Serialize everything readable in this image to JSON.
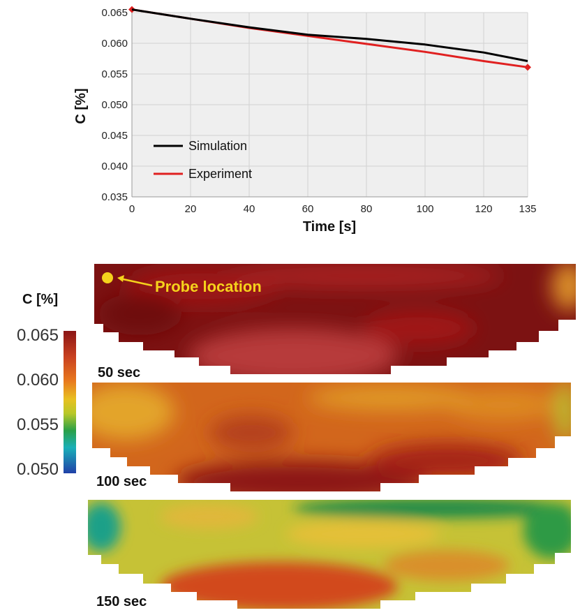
{
  "chart_data": {
    "type": "line",
    "xlabel": "Time [s]",
    "ylabel": "C  [%]",
    "xlim": [
      0,
      135
    ],
    "ylim": [
      0.035,
      0.065
    ],
    "x_ticks": [
      0,
      20,
      40,
      60,
      80,
      100,
      120,
      135
    ],
    "x_tick_labels": [
      "0",
      "20",
      "40",
      "60",
      "80",
      "100",
      "120",
      "135"
    ],
    "y_ticks": [
      0.035,
      0.04,
      0.045,
      0.05,
      0.055,
      0.06,
      0.065
    ],
    "y_tick_labels": [
      "0.035",
      "0.040",
      "0.045",
      "0.050",
      "0.055",
      "0.060",
      "0.065"
    ],
    "grid": true,
    "legend_position": "lower-left",
    "series": [
      {
        "name": "Simulation",
        "color": "#000000",
        "x": [
          0,
          20,
          40,
          60,
          80,
          100,
          120,
          135
        ],
        "y": [
          0.0655,
          0.064,
          0.0626,
          0.0614,
          0.0607,
          0.0598,
          0.0585,
          0.0571
        ]
      },
      {
        "name": "Experiment",
        "color": "#e02020",
        "x": [
          0,
          20,
          40,
          60,
          80,
          100,
          120,
          135
        ],
        "y": [
          0.0655,
          0.064,
          0.0625,
          0.0612,
          0.0599,
          0.0586,
          0.0571,
          0.0561
        ],
        "markers_at": [
          0,
          135
        ]
      }
    ]
  },
  "contour": {
    "legend_title": "C [%]",
    "colorbar_range": [
      0.05,
      0.065
    ],
    "colorbar_ticks": [
      "0.065",
      "0.060",
      "0.055",
      "0.050"
    ],
    "colorbar_colors": [
      "#8b1515",
      "#c84020",
      "#e8781e",
      "#e8c020",
      "#b8c828",
      "#2aa048",
      "#1ab0b8",
      "#2040a8"
    ],
    "probe_label": "Probe location",
    "probe_color": "#f5d21c",
    "panels": [
      {
        "label": "50 sec",
        "base": "#7c1212",
        "hi": "#b73a3a",
        "mid": "#a01818"
      },
      {
        "label": "100 sec",
        "base": "#d2661c",
        "hi": "#9a1c14",
        "mid": "#e3a42a"
      },
      {
        "label": "150 sec",
        "base": "#c6c236",
        "hi": "#d24a1a",
        "mid": "#1f8a4a"
      }
    ]
  }
}
